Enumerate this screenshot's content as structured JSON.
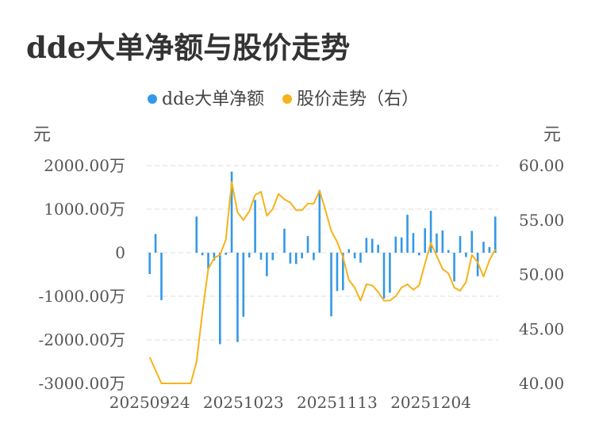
{
  "title": "dde大单净额与股价走势",
  "colors": {
    "bar": "#3399e6",
    "line": "#f5b31a",
    "grid": "#dddddd",
    "title": "#333333"
  },
  "chart_data": {
    "type": "bar+line",
    "legend": [
      {
        "label": "dde大单净额",
        "color": "#3399e6",
        "shape": "circle"
      },
      {
        "label": "股价走势（右）",
        "color": "#f5b31a",
        "shape": "circle"
      }
    ],
    "legend_position": "top-center",
    "left_unit": "元",
    "right_unit": "元",
    "left_ticks": [
      "2000.00万",
      "1000.00万",
      "0",
      "-1000.00万",
      "-2000.00万",
      "-3000.00万"
    ],
    "left_tick_values": [
      2000,
      1000,
      0,
      -1000,
      -2000,
      -3000
    ],
    "right_ticks": [
      "60.00",
      "55.00",
      "50.00",
      "45.00",
      "40.00"
    ],
    "right_tick_values": [
      60,
      55,
      50,
      45,
      40
    ],
    "ylim_left": [
      -3000,
      2000
    ],
    "ylim_right": [
      40,
      60
    ],
    "x_tick_labels": [
      "20250924",
      "20251023",
      "20251113",
      "20251204"
    ],
    "x_tick_indices": [
      0,
      16,
      32,
      48
    ],
    "grid": true,
    "series": [
      {
        "name": "dde大单净额",
        "type": "bar",
        "axis": "left",
        "unit": "万元",
        "values": [
          -490,
          430,
          -1090,
          0,
          0,
          0,
          0,
          0,
          830,
          -60,
          -370,
          -180,
          -2100,
          -50,
          1860,
          -2050,
          -1470,
          -110,
          1210,
          -160,
          -540,
          -170,
          0,
          550,
          -250,
          -260,
          -130,
          380,
          -170,
          1440,
          0,
          -1460,
          -880,
          -860,
          80,
          -130,
          -230,
          340,
          320,
          180,
          -1050,
          -920,
          370,
          350,
          870,
          450,
          -60,
          560,
          960,
          440,
          510,
          60,
          -660,
          380,
          -100,
          500,
          -540,
          250,
          130,
          830
        ]
      },
      {
        "name": "股价走势（右）",
        "type": "line",
        "axis": "right",
        "unit": "元",
        "values": [
          42.4,
          41.2,
          40.0,
          40.0,
          40.0,
          40.0,
          40.0,
          40.0,
          42.0,
          46.5,
          50.5,
          51.5,
          51.8,
          53.2,
          58.5,
          55.7,
          55.0,
          55.8,
          57.3,
          57.6,
          55.4,
          56.0,
          57.4,
          56.9,
          56.6,
          55.9,
          55.9,
          56.5,
          56.5,
          57.7,
          55.9,
          54.0,
          53.0,
          51.6,
          49.5,
          48.8,
          47.6,
          49.1,
          49.0,
          48.4,
          47.6,
          47.6,
          48.0,
          48.8,
          49.1,
          48.6,
          49.0,
          51.0,
          52.9,
          51.7,
          50.5,
          50.1,
          48.8,
          48.5,
          49.3,
          51.8,
          51.1,
          49.8,
          51.3,
          52.3
        ]
      }
    ]
  }
}
